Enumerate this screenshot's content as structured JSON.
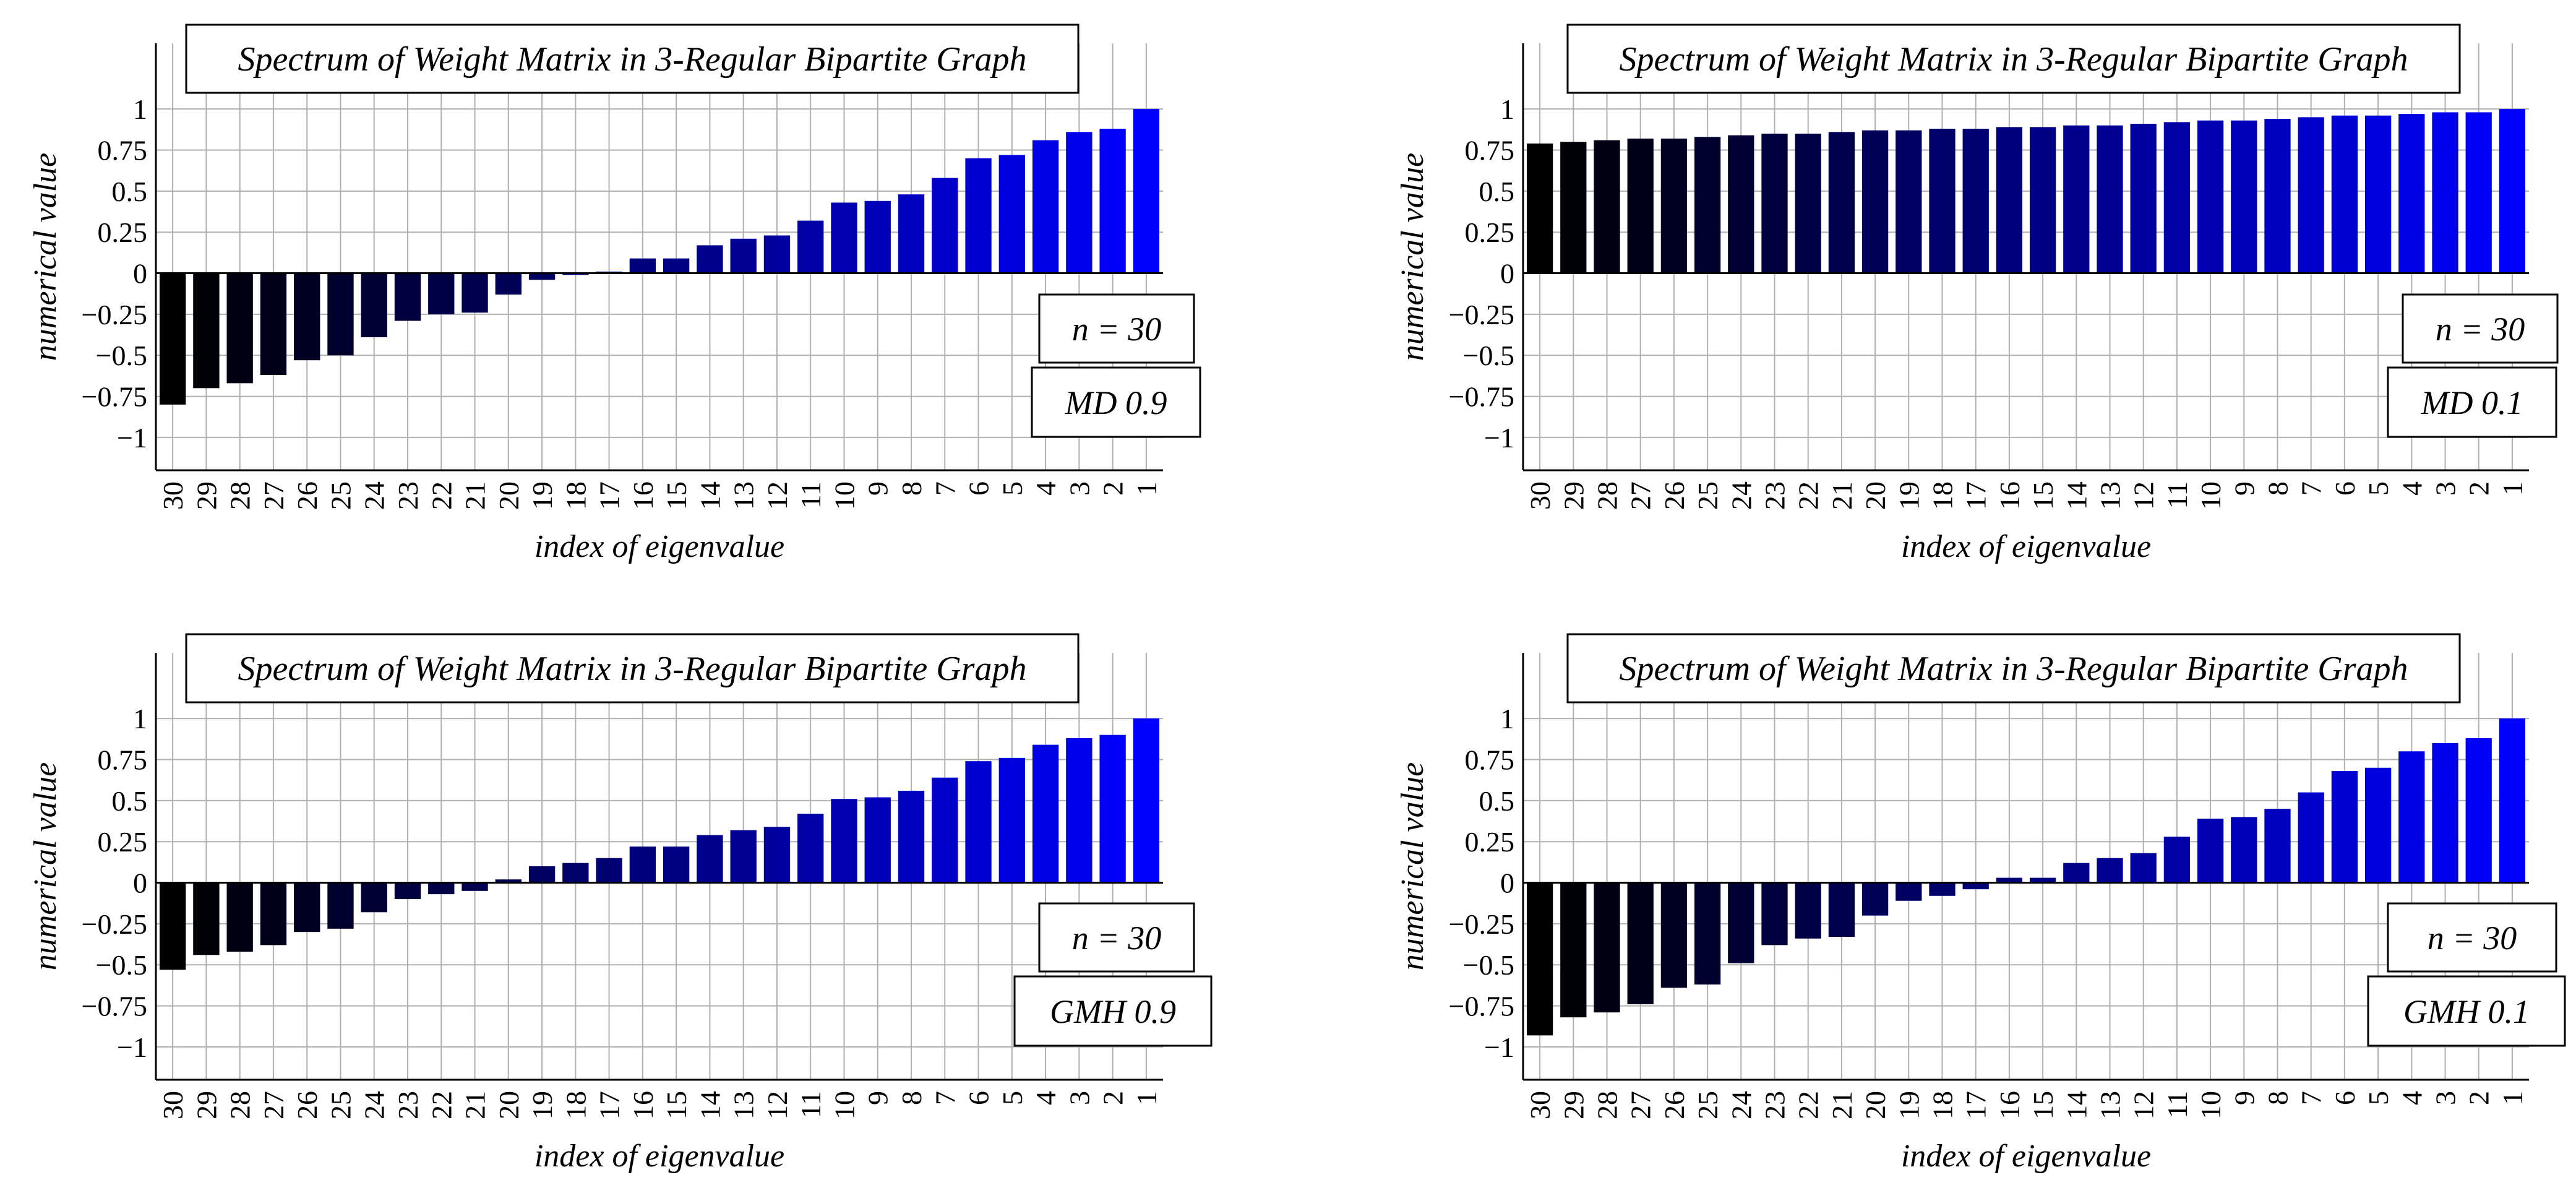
{
  "chart_data": [
    {
      "type": "bar",
      "title": "Spectrum of Weight Matrix in 3-Regular Bipartite Graph",
      "xlabel": "index of eigenvalue",
      "ylabel": "numerical value",
      "categories": [
        "30",
        "29",
        "28",
        "27",
        "26",
        "25",
        "24",
        "23",
        "22",
        "21",
        "20",
        "19",
        "18",
        "17",
        "16",
        "15",
        "14",
        "13",
        "12",
        "11",
        "10",
        "9",
        "8",
        "7",
        "6",
        "5",
        "4",
        "3",
        "2",
        "1"
      ],
      "values": [
        -0.8,
        -0.7,
        -0.67,
        -0.62,
        -0.53,
        -0.5,
        -0.39,
        -0.29,
        -0.25,
        -0.24,
        -0.13,
        -0.04,
        -0.01,
        0.01,
        0.09,
        0.09,
        0.17,
        0.21,
        0.23,
        0.32,
        0.43,
        0.44,
        0.48,
        0.58,
        0.7,
        0.72,
        0.81,
        0.86,
        0.88,
        1.0
      ],
      "ylim": [
        -1.2,
        1.4
      ],
      "yticks": [
        "1",
        "0.75",
        "0.5",
        "0.25",
        "0",
        "-0.25",
        "-0.5",
        "-0.75",
        "-1"
      ],
      "grid": true,
      "annotations": [
        "n = 30",
        "MD 0.9"
      ]
    },
    {
      "type": "bar",
      "title": "Spectrum of Weight Matrix in 3-Regular Bipartite Graph",
      "xlabel": "index of eigenvalue",
      "ylabel": "numerical value",
      "categories": [
        "30",
        "29",
        "28",
        "27",
        "26",
        "25",
        "24",
        "23",
        "22",
        "21",
        "20",
        "19",
        "18",
        "17",
        "16",
        "15",
        "14",
        "13",
        "12",
        "11",
        "10",
        "9",
        "8",
        "7",
        "6",
        "5",
        "4",
        "3",
        "2",
        "1"
      ],
      "values": [
        0.79,
        0.8,
        0.81,
        0.82,
        0.82,
        0.83,
        0.84,
        0.85,
        0.85,
        0.86,
        0.87,
        0.87,
        0.88,
        0.88,
        0.89,
        0.89,
        0.9,
        0.9,
        0.91,
        0.92,
        0.93,
        0.93,
        0.94,
        0.95,
        0.96,
        0.96,
        0.97,
        0.98,
        0.98,
        1.0
      ],
      "ylim": [
        -1.2,
        1.4
      ],
      "yticks": [
        "1",
        "0.75",
        "0.5",
        "0.25",
        "0",
        "-0.25",
        "-0.5",
        "-0.75",
        "-1"
      ],
      "grid": true,
      "annotations": [
        "n = 30",
        "MD 0.1"
      ]
    },
    {
      "type": "bar",
      "title": "Spectrum of Weight Matrix in 3-Regular Bipartite Graph",
      "xlabel": "index of eigenvalue",
      "ylabel": "numerical value",
      "categories": [
        "30",
        "29",
        "28",
        "27",
        "26",
        "25",
        "24",
        "23",
        "22",
        "21",
        "20",
        "19",
        "18",
        "17",
        "16",
        "15",
        "14",
        "13",
        "12",
        "11",
        "10",
        "9",
        "8",
        "7",
        "6",
        "5",
        "4",
        "3",
        "2",
        "1"
      ],
      "values": [
        -0.53,
        -0.44,
        -0.42,
        -0.38,
        -0.3,
        -0.28,
        -0.18,
        -0.1,
        -0.07,
        -0.05,
        0.02,
        0.1,
        0.12,
        0.15,
        0.22,
        0.22,
        0.29,
        0.32,
        0.34,
        0.42,
        0.51,
        0.52,
        0.56,
        0.64,
        0.74,
        0.76,
        0.84,
        0.88,
        0.9,
        1.0
      ],
      "ylim": [
        -1.2,
        1.4
      ],
      "yticks": [
        "1",
        "0.75",
        "0.5",
        "0.25",
        "0",
        "-0.25",
        "-0.5",
        "-0.75",
        "-1"
      ],
      "grid": true,
      "annotations": [
        "n = 30",
        "GMH 0.9"
      ]
    },
    {
      "type": "bar",
      "title": "Spectrum of Weight Matrix in 3-Regular Bipartite Graph",
      "xlabel": "index of eigenvalue",
      "ylabel": "numerical value",
      "categories": [
        "30",
        "29",
        "28",
        "27",
        "26",
        "25",
        "24",
        "23",
        "22",
        "21",
        "20",
        "19",
        "18",
        "17",
        "16",
        "15",
        "14",
        "13",
        "12",
        "11",
        "10",
        "9",
        "8",
        "7",
        "6",
        "5",
        "4",
        "3",
        "2",
        "1"
      ],
      "values": [
        -0.93,
        -0.82,
        -0.79,
        -0.74,
        -0.64,
        -0.62,
        -0.49,
        -0.38,
        -0.34,
        -0.33,
        -0.2,
        -0.11,
        -0.08,
        -0.04,
        0.03,
        0.03,
        0.12,
        0.15,
        0.18,
        0.28,
        0.39,
        0.4,
        0.45,
        0.55,
        0.68,
        0.7,
        0.8,
        0.85,
        0.88,
        1.0
      ],
      "ylim": [
        -1.2,
        1.4
      ],
      "yticks": [
        "1",
        "0.75",
        "0.5",
        "0.25",
        "0",
        "-0.25",
        "-0.5",
        "-0.75",
        "-1"
      ],
      "grid": true,
      "annotations": [
        "n = 30",
        "GMH 0.1"
      ]
    }
  ],
  "colors": {
    "bar_start": "#000000",
    "bar_end": "#0000ff",
    "grid": "#b0b0b0",
    "axis": "#000000"
  }
}
